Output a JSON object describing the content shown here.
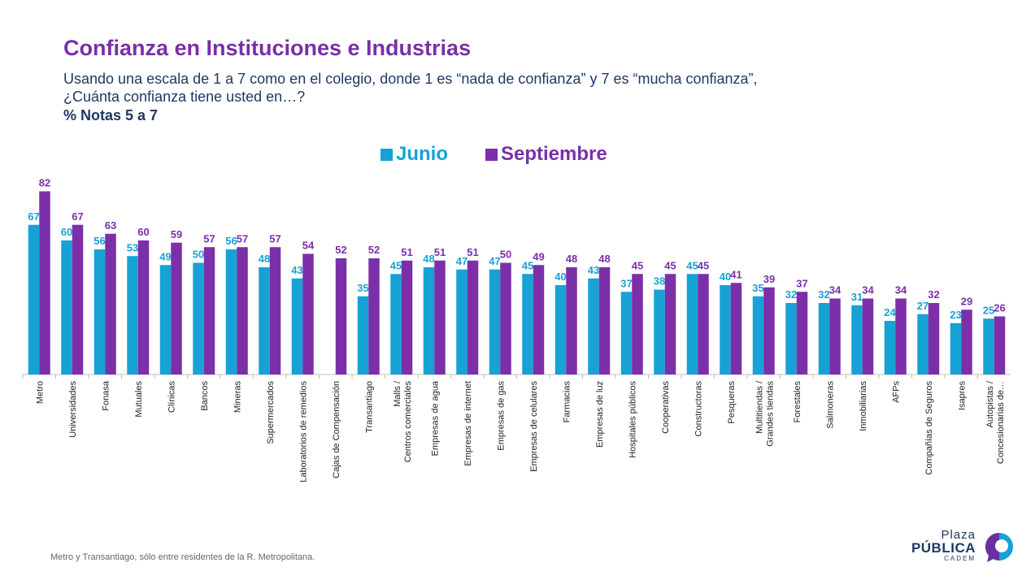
{
  "header": {
    "title": "Confianza en Instituciones e Industrias",
    "subtitle_line1": "Usando una escala de 1 a 7 como en el colegio, donde 1 es “nada de confianza” y 7 es “mucha confianza”,",
    "subtitle_line2": "¿Cuánta confianza tiene usted en…?",
    "note": "% Notas 5 a 7"
  },
  "footnote": "Metro y Transantiago, sólo entre residentes de la R. Metropolitana.",
  "logo": {
    "line1": "Plaza",
    "line2": "PÚBLICA",
    "line3": "CADEM"
  },
  "colors": {
    "junio": "#17a2d6",
    "septiembre": "#7b2fa8"
  },
  "chart_data": {
    "type": "bar",
    "categories": [
      "Metro",
      "Universidades",
      "Fonasa",
      "Mutuales",
      "Clínicas",
      "Bancos",
      "Mineras",
      "Supermercados",
      "Laboratorios de remedios",
      "Cajas de Compensación",
      "Transantiago",
      "Malls / Centros comerciales",
      "Empresas de agua",
      "Empresas de internet",
      "Empresas de gas",
      "Empresas de celulares",
      "Farmacias",
      "Empresas de luz",
      "Hospitales públicos",
      "Cooperativas",
      "Constructoras",
      "Pesqueras",
      "Multitiendas / Grandes tiendas",
      "Forestales",
      "Salmoneras",
      "Inmobiliarias",
      "AFPs",
      "Compañías de Seguros",
      "Isapres",
      "Autopistas / Concesionarias de…"
    ],
    "series": [
      {
        "name": "Junio",
        "color": "#17a2d6",
        "values": [
          67,
          60,
          56,
          53,
          49,
          50,
          56,
          48,
          43,
          null,
          35,
          45,
          48,
          47,
          47,
          45,
          40,
          43,
          37,
          38,
          45,
          40,
          35,
          32,
          32,
          31,
          24,
          27,
          23,
          25
        ]
      },
      {
        "name": "Septiembre",
        "color": "#7b2fa8",
        "values": [
          82,
          67,
          63,
          60,
          59,
          57,
          57,
          57,
          54,
          52,
          52,
          51,
          51,
          51,
          50,
          49,
          48,
          48,
          45,
          45,
          45,
          41,
          39,
          37,
          34,
          34,
          34,
          32,
          29,
          26
        ]
      }
    ],
    "ylim": [
      0,
      100
    ],
    "grid": false,
    "legend": "top-center",
    "data_labels": true
  }
}
